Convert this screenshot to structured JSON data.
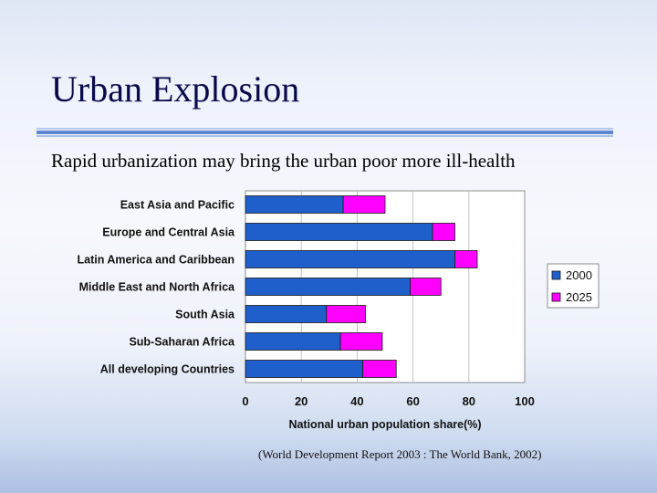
{
  "slide": {
    "title": "Urban Explosion",
    "subtitle": "Rapid urbanization may bring the urban poor more ill-health",
    "source": "(World Development Report 2003 : The World Bank, 2002)"
  },
  "chart_data": {
    "type": "bar",
    "orientation": "horizontal",
    "stacked": true,
    "categories": [
      "East Asia and Pacific",
      "Europe and Central Asia",
      "Latin America and Caribbean",
      "Middle East and North Africa",
      "South Asia",
      "Sub-Saharan Africa",
      "All developing Countries"
    ],
    "series": [
      {
        "name": "2000",
        "color": "#1f5fcc",
        "values": [
          35,
          67,
          75,
          59,
          29,
          34,
          42
        ]
      },
      {
        "name": "2025",
        "color": "#ff00ff",
        "values": [
          15,
          8,
          8,
          11,
          14,
          15,
          12
        ]
      }
    ],
    "xlabel": "National urban population share(%)",
    "xlim": [
      0,
      100
    ],
    "xticks": [
      "0",
      "20",
      "40",
      "60",
      "80",
      "100"
    ],
    "grid": true,
    "legend": "right"
  }
}
